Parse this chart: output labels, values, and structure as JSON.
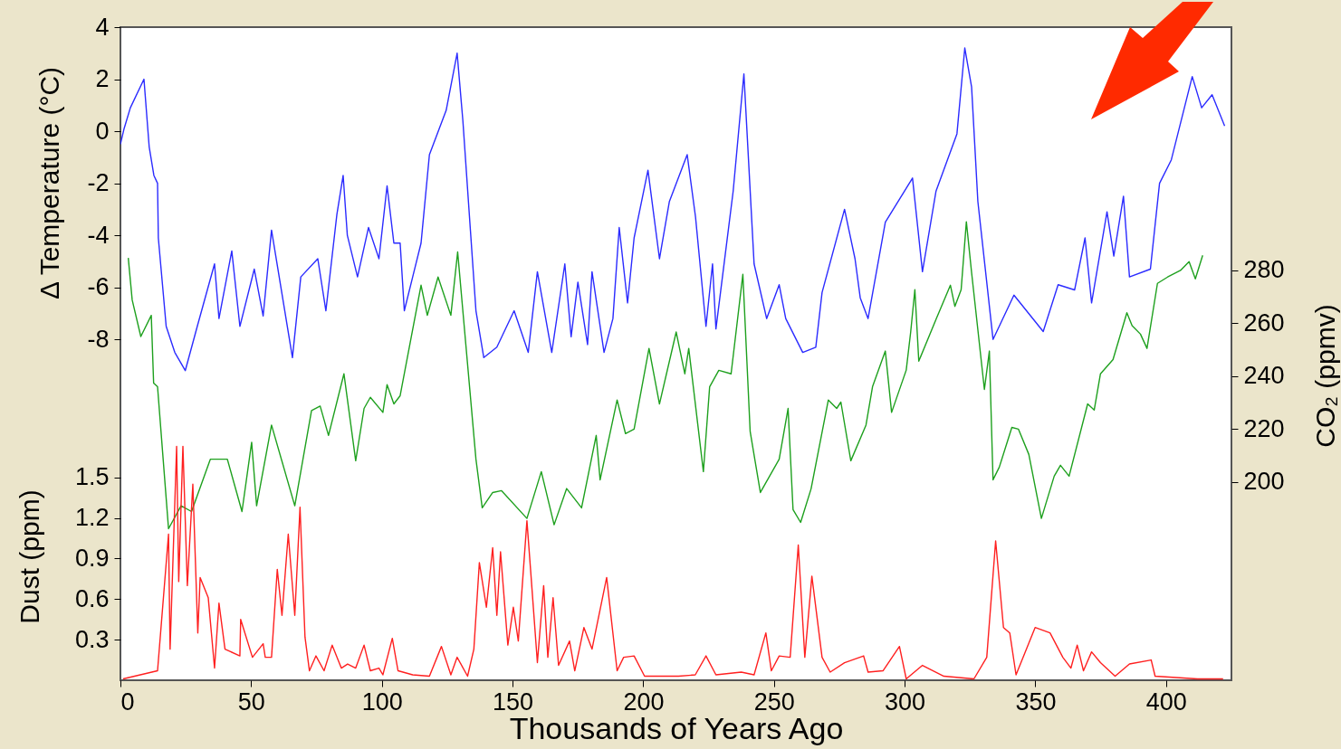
{
  "chart_data": {
    "type": "line",
    "xlabel": "Thousands of Years Ago",
    "ylabel": "Δ Temperature (°C)",
    "y2label": "CO₂ (ppmv)",
    "y3label": "Dust (ppm)",
    "xlim": [
      0,
      425
    ],
    "xticks": [
      0,
      50,
      100,
      150,
      200,
      250,
      300,
      350,
      400
    ],
    "ylim": [
      -21.1,
      4
    ],
    "yticks": [
      4,
      2,
      0,
      -2,
      -4,
      -6,
      -8
    ],
    "y2lim": [
      125,
      372
    ],
    "y2ticks": [
      200,
      220,
      240,
      260,
      280
    ],
    "y3lim": [
      0,
      4.83
    ],
    "y3ticks": [
      0.3,
      0.6,
      0.9,
      1.2,
      1.5
    ],
    "series": [
      {
        "color": "#2b2bff",
        "axis": "y",
        "x": [
          0,
          1.4,
          3.8,
          9,
          11,
          12.8,
          14.2,
          14.5,
          17.5,
          20.8,
          24.8,
          29.4,
          36,
          37.7,
          42.6,
          45.7,
          51.2,
          54.6,
          57.8,
          65.8,
          69,
          75.5,
          78.6,
          82.8,
          85.2,
          86.8,
          90.7,
          94.9,
          98.9,
          102,
          104.6,
          107,
          108.6,
          111.8,
          115,
          118.2,
          124.6,
          128.8,
          131,
          136,
          139,
          144,
          150.6,
          156,
          159.5,
          165,
          170,
          172.4,
          175,
          178.7,
          180.4,
          185,
          188.4,
          190.8,
          194,
          196.5,
          201.8,
          206.2,
          210,
          216.8,
          220,
          224,
          226.5,
          227.8,
          234.4,
          238.5,
          242.4,
          247.2,
          252,
          254.5,
          261,
          266,
          268.4,
          277,
          281,
          283,
          286,
          292.6,
          303,
          306.8,
          312,
          320,
          323,
          325.6,
          328,
          333.8,
          341.8,
          353,
          358.7,
          365,
          369,
          371.5,
          377.4,
          380,
          383.7,
          386,
          394,
          397.5,
          402,
          410,
          413.6,
          417.6,
          422.4
        ],
        "values": [
          -0.5,
          0.1,
          0.9,
          2.0,
          -0.6,
          -1.7,
          -2.0,
          -4.1,
          -7.5,
          -8.5,
          -9.2,
          -7.5,
          -5.1,
          -7.2,
          -4.6,
          -7.5,
          -5.3,
          -7.1,
          -3.8,
          -8.7,
          -5.6,
          -4.9,
          -6.9,
          -3.2,
          -1.7,
          -4.0,
          -5.6,
          -3.7,
          -4.9,
          -2.1,
          -4.3,
          -4.3,
          -6.9,
          -5.6,
          -4.3,
          -0.9,
          0.8,
          3.0,
          0.4,
          -6.9,
          -8.7,
          -8.3,
          -6.9,
          -8.5,
          -5.4,
          -8.5,
          -5.1,
          -7.9,
          -5.8,
          -8.2,
          -5.4,
          -8.5,
          -7.2,
          -3.7,
          -6.6,
          -4.1,
          -1.5,
          -4.9,
          -2.7,
          -0.9,
          -3.3,
          -7.5,
          -5.1,
          -7.6,
          -2.3,
          2.2,
          -5.1,
          -7.2,
          -5.9,
          -7.2,
          -8.5,
          -8.3,
          -6.2,
          -3.0,
          -4.9,
          -6.4,
          -7.2,
          -3.5,
          -1.8,
          -5.4,
          -2.3,
          -0.1,
          3.2,
          1.7,
          -2.7,
          -8.0,
          -6.3,
          -7.7,
          -5.9,
          -6.1,
          -4.1,
          -6.6,
          -3.1,
          -4.8,
          -2.5,
          -5.6,
          -5.3,
          -2.0,
          -1.1,
          2.1,
          0.9,
          1.4,
          0.2
        ]
      },
      {
        "color": "#1ea01e",
        "axis": "y2",
        "x": [
          3,
          4.5,
          7.8,
          11.8,
          12.7,
          14.2,
          18.4,
          23.2,
          27.2,
          34.4,
          40.9,
          46.5,
          50.2,
          52.1,
          57.8,
          66.7,
          73.1,
          76.4,
          79.6,
          85.5,
          90,
          93.2,
          95.6,
          100.4,
          102,
          104.6,
          107,
          115,
          117.4,
          121.5,
          126.4,
          129,
          136,
          138.4,
          142.4,
          145.8,
          155.5,
          161,
          165.9,
          170.7,
          176.4,
          182,
          183.5,
          190,
          193.2,
          196.5,
          202.2,
          206.2,
          212.6,
          215.9,
          217.4,
          223,
          225.4,
          228.9,
          233.6,
          238.1,
          240.9,
          244.8,
          252,
          255.4,
          257.3,
          260.2,
          264.2,
          270.8,
          274,
          275.6,
          279.4,
          285.2,
          287.7,
          292.6,
          295,
          300.6,
          302.3,
          303.9,
          305.4,
          312,
          317.5,
          319.2,
          321.6,
          323.6,
          325.6,
          330.5,
          332.4,
          333.8,
          336.2,
          341,
          343.5,
          347.5,
          352.3,
          357.2,
          359.6,
          362.9,
          370,
          372.5,
          374.9,
          379.7,
          385,
          387,
          390.2,
          392.7,
          396.7,
          400.6,
          405.5,
          408.8,
          411.2,
          414
        ],
        "values": [
          284.7,
          268.8,
          255,
          263,
          237.4,
          236,
          182.3,
          191,
          188.8,
          208.6,
          208.6,
          188.8,
          215,
          191,
          221.5,
          191,
          227,
          228.7,
          217.6,
          240.9,
          208,
          227.8,
          232,
          226.3,
          236.8,
          229.5,
          232.6,
          274.4,
          263,
          277.5,
          263,
          287,
          208.6,
          190.2,
          196,
          196.7,
          186.2,
          203.9,
          183.8,
          197.5,
          190.2,
          217.6,
          200.8,
          231,
          218.3,
          220,
          250.5,
          229.5,
          256.7,
          240.9,
          250.5,
          203.9,
          236,
          242.2,
          240.9,
          278.5,
          219,
          196,
          208.6,
          227.8,
          189.5,
          184.7,
          197.4,
          231,
          227.8,
          230.2,
          208,
          221.5,
          236,
          249.5,
          226.3,
          242.3,
          256.7,
          272.7,
          245.7,
          261.5,
          274.4,
          266.4,
          272.7,
          298.4,
          279.2,
          235,
          249.5,
          200.8,
          205.6,
          220.6,
          220,
          210.4,
          186.2,
          202.2,
          206.3,
          202.2,
          229.5,
          227.2,
          240.9,
          246.3,
          264,
          259.1,
          255.9,
          250.5,
          275.1,
          277.5,
          280,
          283.3,
          276.8,
          285.7
        ]
      },
      {
        "color": "#ff2020",
        "axis": "y3",
        "x": [
          1,
          14.2,
          18.4,
          19,
          21.5,
          22.3,
          23.9,
          25.6,
          27.7,
          29.6,
          30.5,
          33.6,
          36,
          37.7,
          40,
          45.7,
          46,
          50.5,
          54.6,
          55.4,
          57.8,
          60,
          61.8,
          64.2,
          66.7,
          68.7,
          70.6,
          72.3,
          74.8,
          77.9,
          81,
          84.5,
          86.9,
          90,
          93.2,
          95.6,
          98.9,
          100.4,
          104,
          106.2,
          111.8,
          118.2,
          122.8,
          126.4,
          128.8,
          132.8,
          135.2,
          137.3,
          140,
          142.4,
          144,
          145.4,
          148.2,
          150.3,
          152.2,
          155.5,
          157,
          159.5,
          161.9,
          163.5,
          165.5,
          167.6,
          171.8,
          173.8,
          177.3,
          180.4,
          186,
          190,
          192.5,
          196.5,
          200.5,
          213.5,
          219.9,
          224,
          227.8,
          237.5,
          242.4,
          246.9,
          249,
          252,
          256.2,
          259.3,
          261.8,
          264.5,
          268.4,
          271.5,
          277,
          284.3,
          286,
          291.7,
          298,
          300.6,
          306.8,
          315,
          326.5,
          331.4,
          334.8,
          337.8,
          340.2,
          342.6,
          349.9,
          355.6,
          360.5,
          363.6,
          366,
          368.4,
          371.5,
          374.9,
          380.5,
          386,
          394.3,
          395.8,
          412,
          421.8
        ],
        "values": [
          0.01,
          0.07,
          1.08,
          0.23,
          1.73,
          0.73,
          1.73,
          0.7,
          1.45,
          0.35,
          0.76,
          0.61,
          0.09,
          0.57,
          0.23,
          0.18,
          0.45,
          0.17,
          0.27,
          0.17,
          0.17,
          0.82,
          0.48,
          1.08,
          0.48,
          1.28,
          0.32,
          0.07,
          0.18,
          0.07,
          0.26,
          0.09,
          0.12,
          0.09,
          0.26,
          0.07,
          0.09,
          0.04,
          0.31,
          0.07,
          0.04,
          0.03,
          0.25,
          0.04,
          0.17,
          0.03,
          0.23,
          0.87,
          0.54,
          0.98,
          0.48,
          0.95,
          0.26,
          0.54,
          0.29,
          1.18,
          0.79,
          0.13,
          0.7,
          0.17,
          0.61,
          0.11,
          0.29,
          0.07,
          0.39,
          0.23,
          0.76,
          0.07,
          0.17,
          0.18,
          0.03,
          0.03,
          0.04,
          0.18,
          0.04,
          0.06,
          0.04,
          0.35,
          0.07,
          0.18,
          0.17,
          1.0,
          0.17,
          0.77,
          0.17,
          0.06,
          0.13,
          0.18,
          0.06,
          0.07,
          0.25,
          0.01,
          0.11,
          0.03,
          0.01,
          0.17,
          1.03,
          0.39,
          0.35,
          0.04,
          0.39,
          0.35,
          0.17,
          0.09,
          0.26,
          0.07,
          0.21,
          0.13,
          0.03,
          0.12,
          0.15,
          0.03,
          0.01,
          0.01
        ]
      }
    ]
  }
}
